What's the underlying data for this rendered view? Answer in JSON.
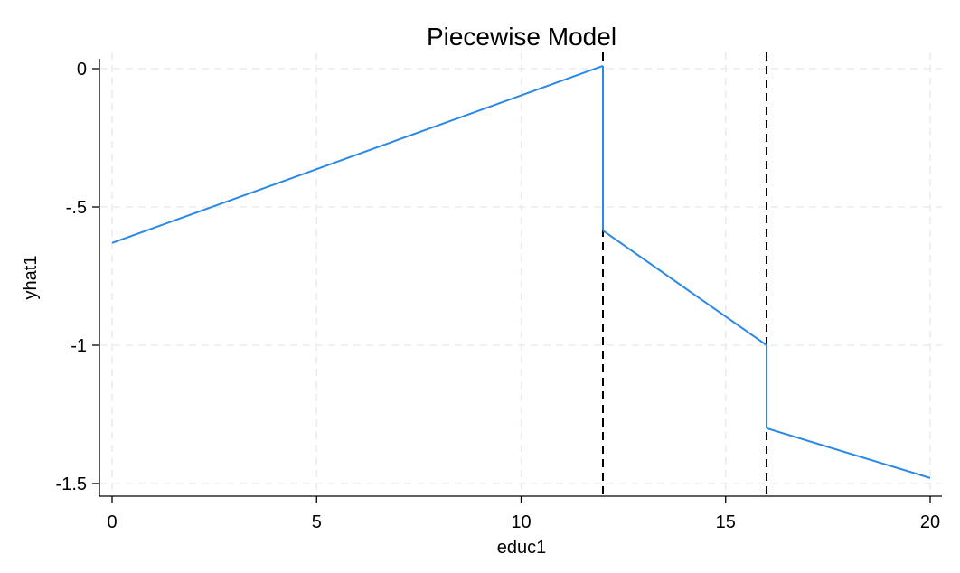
{
  "chart_data": {
    "type": "line",
    "title": "Piecewise Model",
    "xlabel": "educ1",
    "ylabel": "yhat1",
    "xlim": [
      0,
      20
    ],
    "ylim": [
      -1.5,
      0
    ],
    "xticks": [
      0,
      5,
      10,
      15,
      20
    ],
    "xtick_labels": [
      "0",
      "5",
      "10",
      "15",
      "20"
    ],
    "yticks": [
      0,
      -0.5,
      -1,
      -1.5
    ],
    "ytick_labels": [
      "0",
      "-.5",
      "-1",
      "-1.5"
    ],
    "grid": true,
    "series": [
      {
        "color": "#2b88e6",
        "x": [
          0,
          12,
          12,
          16,
          16,
          20
        ],
        "y": [
          -0.63,
          0.01,
          -0.585,
          -1.0,
          -1.3,
          -1.48
        ]
      }
    ],
    "reference_lines": [
      {
        "axis": "x",
        "value": 12,
        "style": "dashed",
        "color": "#000000"
      },
      {
        "axis": "x",
        "value": 16,
        "style": "dashed",
        "color": "#000000"
      }
    ]
  }
}
